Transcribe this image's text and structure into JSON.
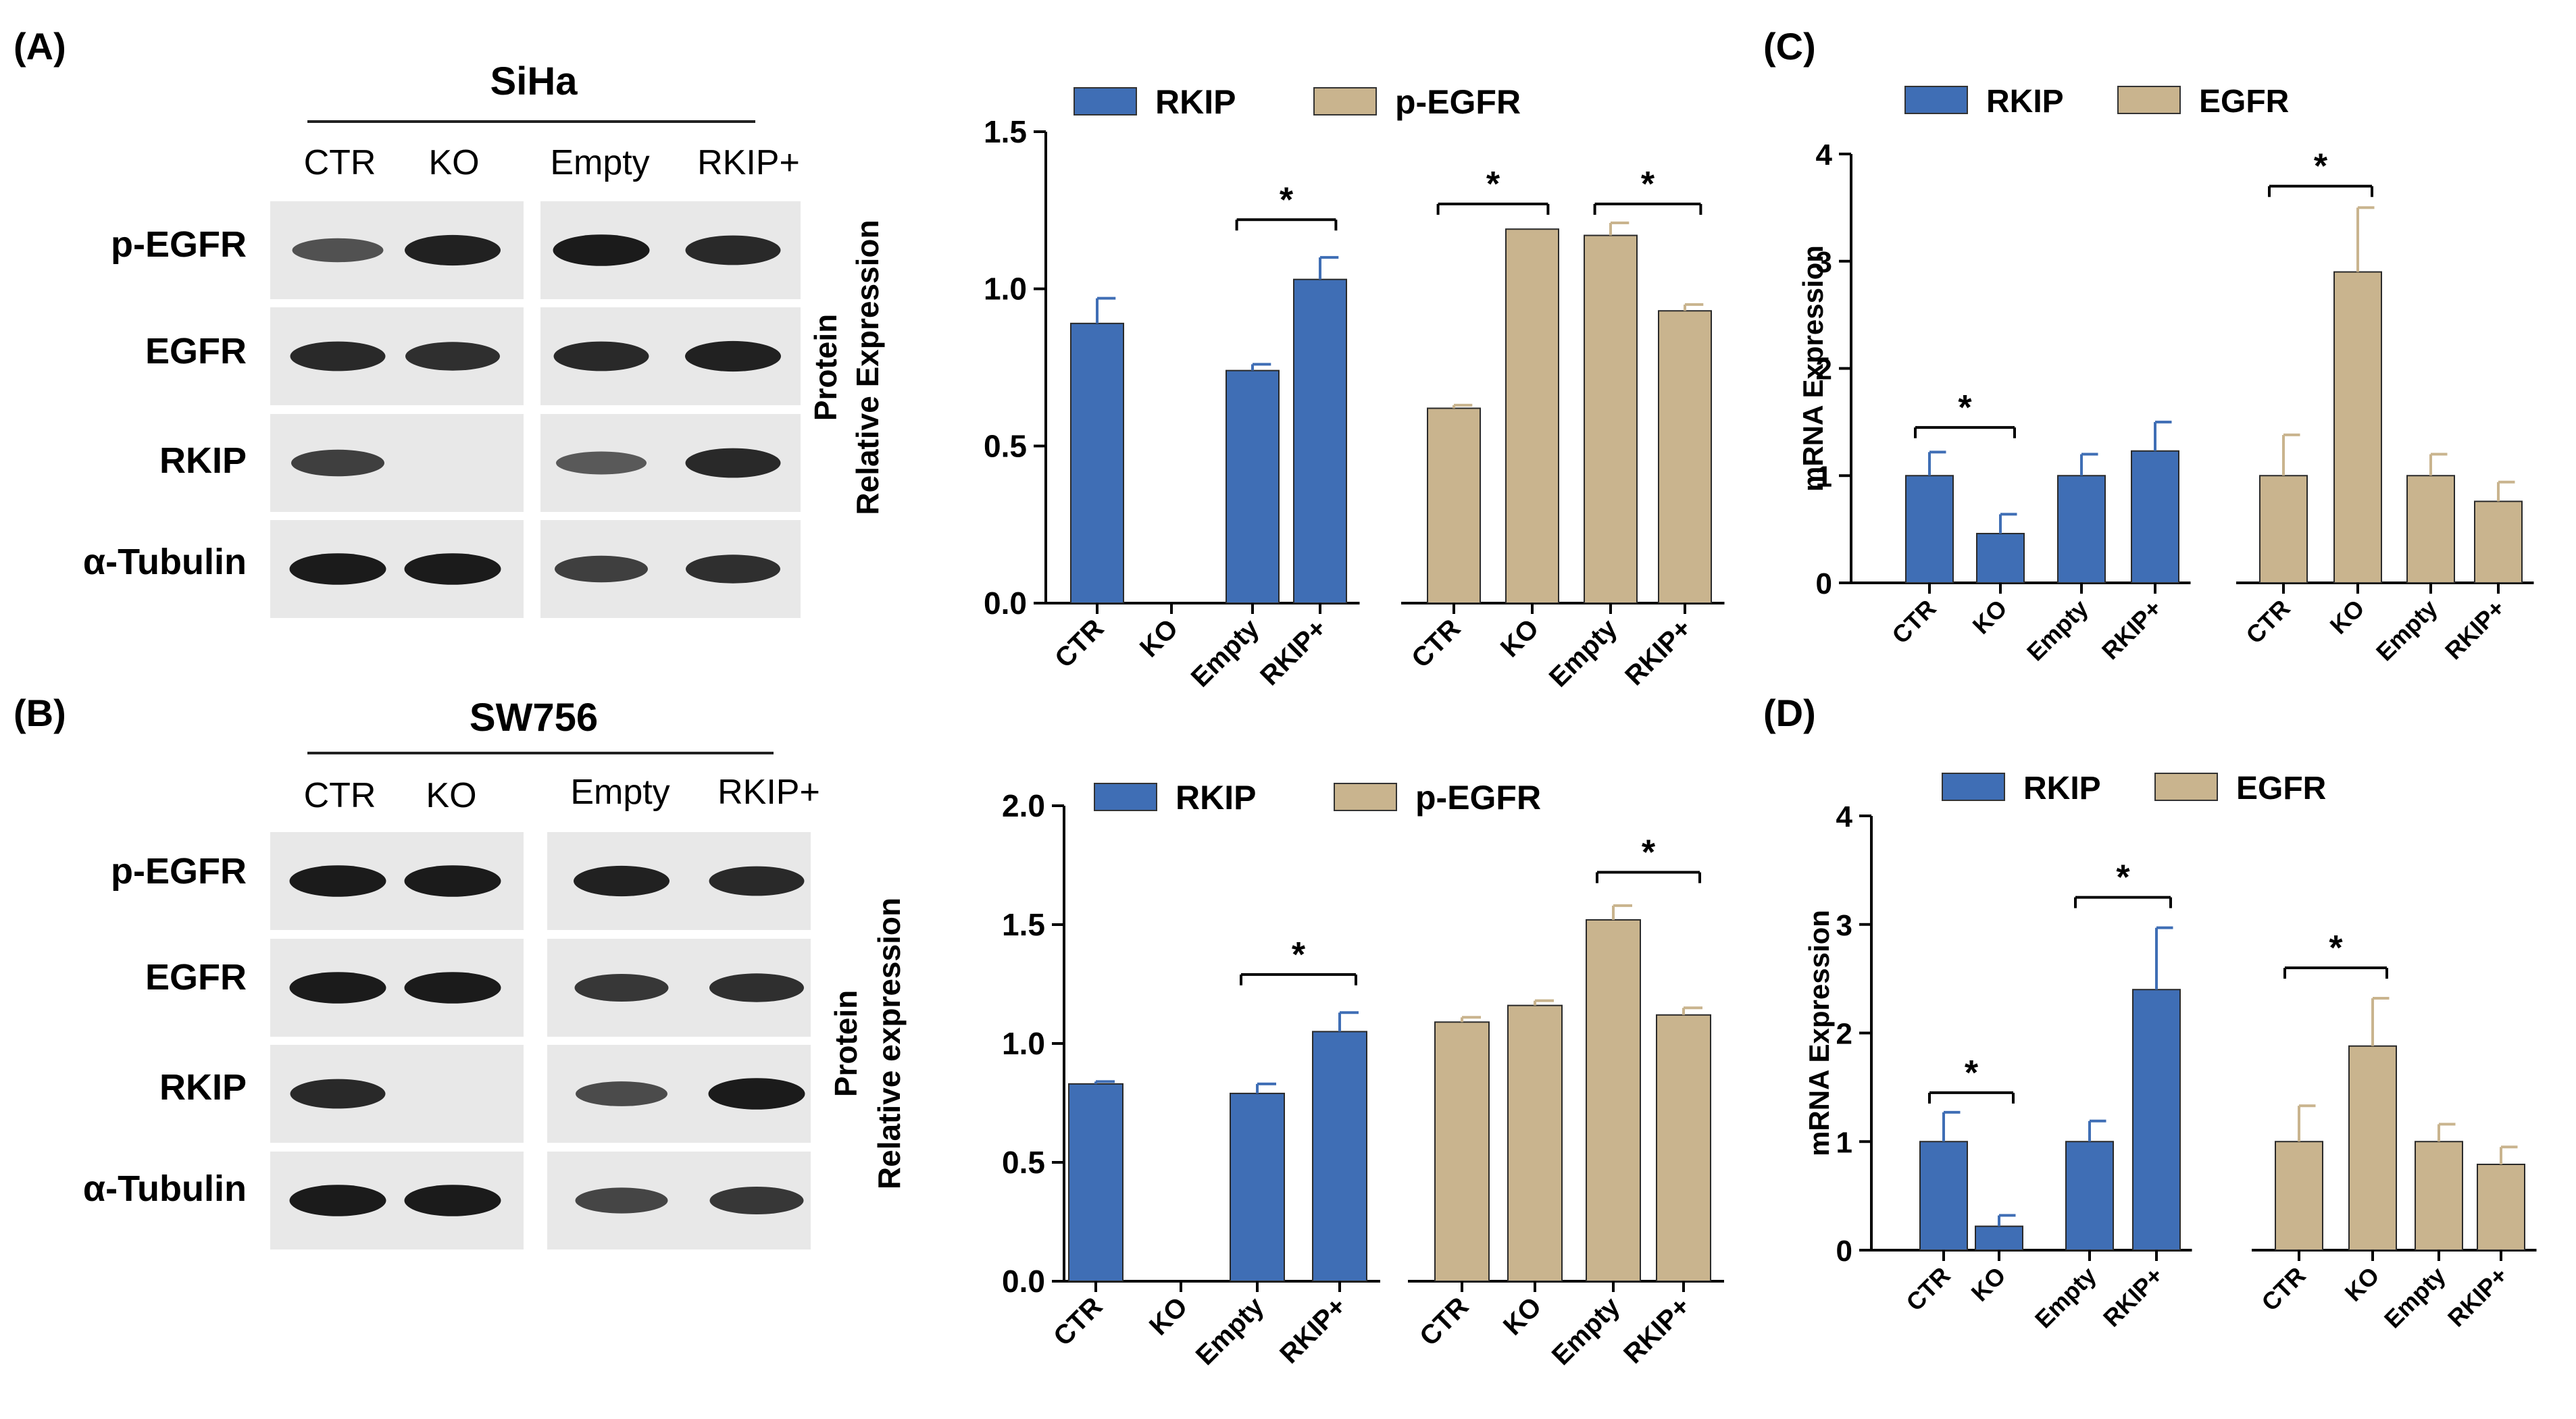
{
  "colors": {
    "blue": "#3f6eb5",
    "tan": "#c9b48e",
    "blot_bg": "#e8e8e8",
    "band": "#141414"
  },
  "panels": {
    "A": {
      "label": "(A)",
      "cell_line": "SiHa",
      "lanes": [
        "CTR",
        "KO",
        "Empty",
        "RKIP+"
      ],
      "rows": [
        "p-EGFR",
        "EGFR",
        "RKIP",
        "α-Tubulin"
      ],
      "band_intensity": [
        [
          0.55,
          0.9,
          0.95,
          0.85
        ],
        [
          0.85,
          0.8,
          0.85,
          0.9
        ],
        [
          0.7,
          0.0,
          0.5,
          0.85
        ],
        [
          0.95,
          0.95,
          0.7,
          0.8
        ]
      ]
    },
    "B": {
      "label": "(B)",
      "cell_line": "SW756",
      "lanes": [
        "CTR",
        "KO",
        "Empty",
        "RKIP+"
      ],
      "rows": [
        "p-EGFR",
        "EGFR",
        "RKIP",
        "α-Tubulin"
      ],
      "band_intensity": [
        [
          0.95,
          0.95,
          0.9,
          0.85
        ],
        [
          0.95,
          0.95,
          0.75,
          0.8
        ],
        [
          0.85,
          0.0,
          0.6,
          0.95
        ],
        [
          0.95,
          0.95,
          0.65,
          0.75
        ]
      ]
    },
    "C": {
      "label": "(C)"
    },
    "D": {
      "label": "(D)"
    }
  },
  "chart_data": [
    {
      "id": "A-chart",
      "type": "bar",
      "legend": [
        "RKIP",
        "p-EGFR"
      ],
      "ylabel": [
        "Protein",
        "Relative Expression"
      ],
      "ylim": [
        0,
        1.5
      ],
      "yticks": [
        0.0,
        0.5,
        1.0,
        1.5
      ],
      "ytick_labels": [
        "0.0",
        "0.5",
        "1.0",
        "1.5"
      ],
      "series": [
        {
          "name": "RKIP",
          "categories": [
            "CTR",
            "KO",
            "Empty",
            "RKIP+"
          ],
          "values": [
            0.89,
            0.0,
            0.74,
            1.03
          ],
          "errors": [
            0.08,
            0.0,
            0.02,
            0.07
          ]
        },
        {
          "name": "p-EGFR",
          "categories": [
            "CTR",
            "KO",
            "Empty",
            "RKIP+"
          ],
          "values": [
            0.62,
            1.19,
            1.17,
            0.93
          ],
          "errors": [
            0.01,
            0.0,
            0.04,
            0.02
          ]
        }
      ],
      "significance": [
        {
          "series": 0,
          "from": 2,
          "to": 3,
          "y": 1.22,
          "label": "*"
        },
        {
          "series": 1,
          "from": 0,
          "to": 1,
          "y": 1.27,
          "label": "*"
        },
        {
          "series": 1,
          "from": 2,
          "to": 3,
          "y": 1.27,
          "label": "*"
        }
      ]
    },
    {
      "id": "B-chart",
      "type": "bar",
      "legend": [
        "RKIP",
        "p-EGFR"
      ],
      "ylabel": [
        "Protein",
        "Relative expression"
      ],
      "ylim": [
        0,
        2.0
      ],
      "yticks": [
        0.0,
        0.5,
        1.0,
        1.5,
        2.0
      ],
      "ytick_labels": [
        "0.0",
        "0.5",
        "1.0",
        "1.5",
        "2.0"
      ],
      "series": [
        {
          "name": "RKIP",
          "categories": [
            "CTR",
            "KO",
            "Empty",
            "RKIP+"
          ],
          "values": [
            0.83,
            0.0,
            0.79,
            1.05
          ],
          "errors": [
            0.01,
            0.0,
            0.04,
            0.08
          ]
        },
        {
          "name": "p-EGFR",
          "categories": [
            "CTR",
            "KO",
            "Empty",
            "RKIP+"
          ],
          "values": [
            1.09,
            1.16,
            1.52,
            1.12
          ],
          "errors": [
            0.02,
            0.02,
            0.06,
            0.03
          ]
        }
      ],
      "significance": [
        {
          "series": 0,
          "from": 2,
          "to": 3,
          "y": 1.29,
          "label": "*"
        },
        {
          "series": 1,
          "from": 2,
          "to": 3,
          "y": 1.72,
          "label": "*"
        }
      ]
    },
    {
      "id": "C-chart",
      "type": "bar",
      "legend": [
        "RKIP",
        "EGFR"
      ],
      "ylabel": [
        "mRNA Expression"
      ],
      "ylim": [
        0,
        4
      ],
      "yticks": [
        0,
        1,
        2,
        3,
        4
      ],
      "ytick_labels": [
        "0",
        "1",
        "2",
        "3",
        "4"
      ],
      "series": [
        {
          "name": "RKIP",
          "categories": [
            "CTR",
            "KO",
            "Empty",
            "RKIP+"
          ],
          "values": [
            1.0,
            0.46,
            1.0,
            1.23
          ],
          "errors": [
            0.22,
            0.18,
            0.2,
            0.27
          ]
        },
        {
          "name": "EGFR",
          "categories": [
            "CTR",
            "KO",
            "Empty",
            "RKIP+"
          ],
          "values": [
            1.0,
            2.9,
            1.0,
            0.76
          ],
          "errors": [
            0.38,
            0.6,
            0.2,
            0.18
          ]
        }
      ],
      "significance": [
        {
          "series": 0,
          "from": 0,
          "to": 1,
          "y": 1.45,
          "label": "*"
        },
        {
          "series": 1,
          "from": 0,
          "to": 1,
          "y": 3.7,
          "label": "*"
        }
      ]
    },
    {
      "id": "D-chart",
      "type": "bar",
      "legend": [
        "RKIP",
        "EGFR"
      ],
      "ylabel": [
        "mRNA Expression"
      ],
      "ylim": [
        0,
        4
      ],
      "yticks": [
        0,
        1,
        2,
        3,
        4
      ],
      "ytick_labels": [
        "0",
        "1",
        "2",
        "3",
        "4"
      ],
      "series": [
        {
          "name": "RKIP",
          "categories": [
            "CTR",
            "KO",
            "Empty",
            "RKIP+"
          ],
          "values": [
            1.0,
            0.22,
            1.0,
            2.4
          ],
          "errors": [
            0.27,
            0.1,
            0.19,
            0.57
          ]
        },
        {
          "name": "EGFR",
          "categories": [
            "CTR",
            "KO",
            "Empty",
            "RKIP+"
          ],
          "values": [
            1.0,
            1.88,
            1.0,
            0.79
          ],
          "errors": [
            0.33,
            0.44,
            0.16,
            0.16
          ]
        }
      ],
      "significance": [
        {
          "series": 0,
          "from": 0,
          "to": 1,
          "y": 1.45,
          "label": "*"
        },
        {
          "series": 0,
          "from": 2,
          "to": 3,
          "y": 3.25,
          "label": "*"
        },
        {
          "series": 1,
          "from": 0,
          "to": 1,
          "y": 2.6,
          "label": "*"
        }
      ]
    }
  ]
}
